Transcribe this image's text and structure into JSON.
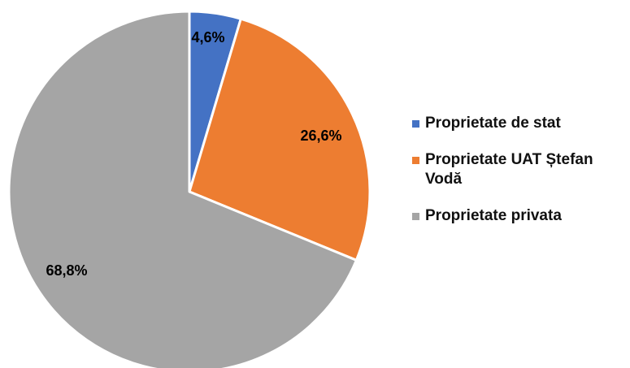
{
  "chart_data": {
    "type": "pie",
    "title": "",
    "series": [
      {
        "name": "Proprietate de stat",
        "value": 4.6,
        "label": "4,6%",
        "color": "#4472c4"
      },
      {
        "name": "Proprietate UAT Ștefan Vodă",
        "value": 26.6,
        "label": "26,6%",
        "color": "#ed7d31"
      },
      {
        "name": "Proprietate privata",
        "value": 68.8,
        "label": "68,8%",
        "color": "#a5a5a5"
      }
    ],
    "start_angle_deg": 0,
    "direction": "clockwise",
    "legend_position": "right"
  }
}
